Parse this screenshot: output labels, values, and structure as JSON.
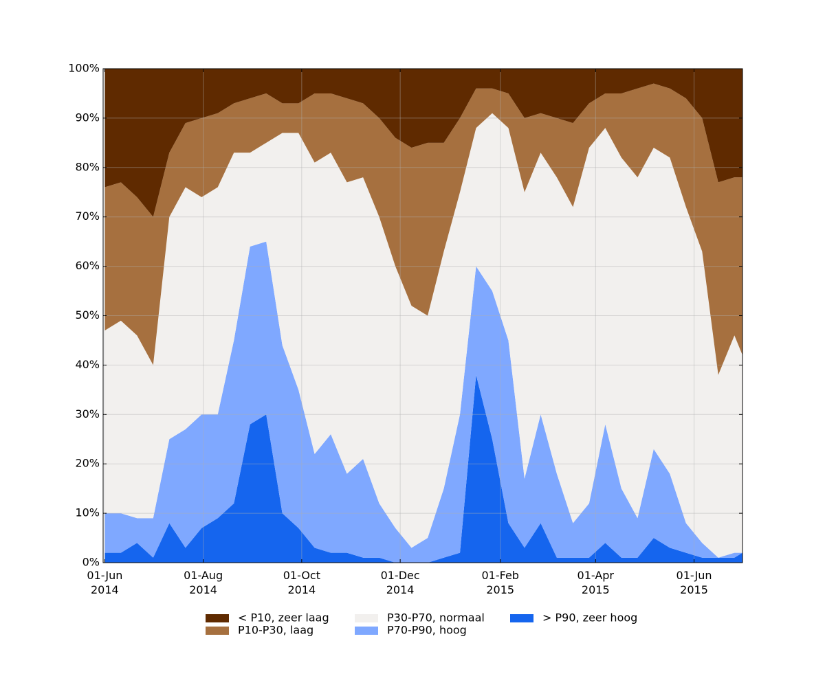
{
  "chart_data": {
    "type": "stacked_area",
    "x": [
      "2014-06-01",
      "2014-06-11",
      "2014-06-21",
      "2014-07-01",
      "2014-07-11",
      "2014-07-21",
      "2014-07-31",
      "2014-08-10",
      "2014-08-20",
      "2014-08-30",
      "2014-09-09",
      "2014-09-19",
      "2014-09-29",
      "2014-10-09",
      "2014-10-19",
      "2014-10-29",
      "2014-11-08",
      "2014-11-18",
      "2014-11-28",
      "2014-12-08",
      "2014-12-18",
      "2014-12-28",
      "2015-01-07",
      "2015-01-17",
      "2015-01-27",
      "2015-02-06",
      "2015-02-16",
      "2015-02-26",
      "2015-03-08",
      "2015-03-18",
      "2015-03-28",
      "2015-04-07",
      "2015-04-17",
      "2015-04-27",
      "2015-05-07",
      "2015-05-17",
      "2015-05-27",
      "2015-06-06",
      "2015-06-16",
      "2015-06-26",
      "2015-07-01"
    ],
    "series": [
      {
        "name": "< P10, zeer laag",
        "color": "#5f2a00",
        "values": [
          24,
          23,
          26,
          30,
          17,
          11,
          10,
          9,
          7,
          6,
          5,
          7,
          7,
          5,
          5,
          6,
          7,
          10,
          14,
          16,
          15,
          15,
          10,
          4,
          4,
          5,
          10,
          9,
          10,
          11,
          7,
          5,
          5,
          4,
          3,
          4,
          6,
          10,
          23,
          22,
          22
        ]
      },
      {
        "name": "P10-P30, laag",
        "color": "#a6703f",
        "values": [
          29,
          28,
          28,
          30,
          13,
          13,
          16,
          15,
          10,
          11,
          10,
          6,
          6,
          14,
          12,
          17,
          15,
          20,
          26,
          32,
          35,
          22,
          15,
          8,
          5,
          7,
          15,
          8,
          12,
          17,
          9,
          7,
          13,
          18,
          13,
          14,
          22,
          27,
          39,
          32,
          36
        ]
      },
      {
        "name": "P30-P70, normaal",
        "color": "#f2f0ee",
        "values": [
          37,
          39,
          37,
          31,
          45,
          49,
          44,
          46,
          38,
          19,
          20,
          43,
          52,
          59,
          57,
          59,
          57,
          58,
          53,
          49,
          45,
          48,
          45,
          28,
          36,
          43,
          58,
          53,
          60,
          64,
          72,
          60,
          67,
          69,
          61,
          64,
          64,
          59,
          37,
          44,
          40
        ]
      },
      {
        "name": "P70-P90, hoog",
        "color": "#7fa8ff",
        "values": [
          8,
          8,
          5,
          8,
          17,
          24,
          23,
          21,
          33,
          36,
          35,
          34,
          28,
          19,
          24,
          16,
          20,
          11,
          7,
          3,
          5,
          14,
          28,
          22,
          30,
          37,
          14,
          22,
          17,
          7,
          11,
          24,
          14,
          8,
          18,
          15,
          6,
          3,
          0,
          1,
          0
        ]
      },
      {
        "name": "> P90, zeer hoog",
        "color": "#1565ee",
        "values": [
          2,
          2,
          4,
          1,
          8,
          3,
          7,
          9,
          12,
          28,
          30,
          10,
          7,
          3,
          2,
          2,
          1,
          1,
          0,
          0,
          0,
          1,
          2,
          38,
          25,
          8,
          3,
          8,
          1,
          1,
          1,
          4,
          1,
          1,
          5,
          3,
          2,
          1,
          1,
          1,
          2
        ]
      }
    ],
    "xlim": [
      "2014-05-31",
      "2015-07-01"
    ],
    "xticks": [
      {
        "value": "2014-06-01",
        "label": "01-Jun\n2014"
      },
      {
        "value": "2014-08-01",
        "label": "01-Aug\n2014"
      },
      {
        "value": "2014-10-01",
        "label": "01-Oct\n2014"
      },
      {
        "value": "2014-12-01",
        "label": "01-Dec\n2014"
      },
      {
        "value": "2015-02-01",
        "label": "01-Feb\n2015"
      },
      {
        "value": "2015-04-01",
        "label": "01-Apr\n2015"
      },
      {
        "value": "2015-06-01",
        "label": "01-Jun\n2015"
      }
    ],
    "ylim": [
      0,
      100
    ],
    "yticks": [
      {
        "value": 0,
        "label": "0%"
      },
      {
        "value": 10,
        "label": "10%"
      },
      {
        "value": 20,
        "label": "20%"
      },
      {
        "value": 30,
        "label": "30%"
      },
      {
        "value": 40,
        "label": "40%"
      },
      {
        "value": 50,
        "label": "50%"
      },
      {
        "value": 60,
        "label": "60%"
      },
      {
        "value": 70,
        "label": "70%"
      },
      {
        "value": 80,
        "label": "80%"
      },
      {
        "value": 90,
        "label": "90%"
      },
      {
        "value": 100,
        "label": "100%"
      }
    ],
    "grid": true
  }
}
